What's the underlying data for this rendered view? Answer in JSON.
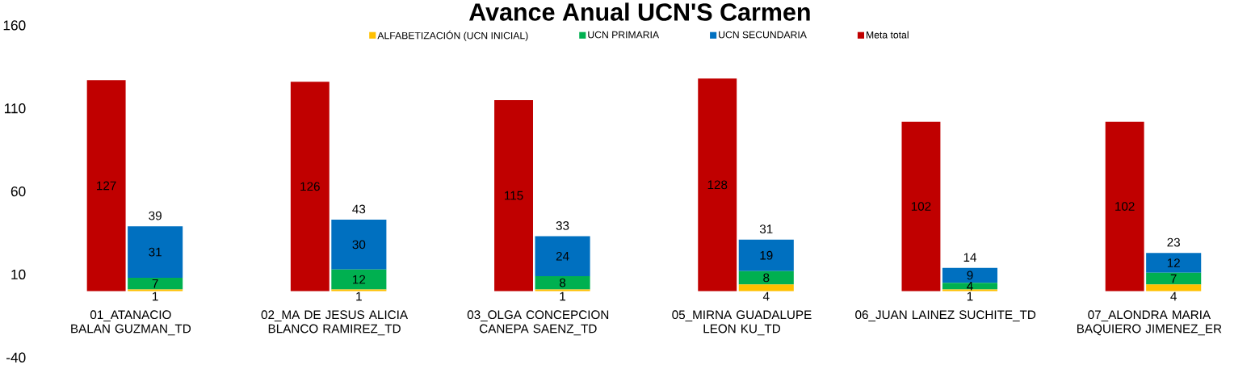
{
  "chart_data": {
    "type": "bar",
    "title": "Avance Anual UCN'S Carmen",
    "categories": [
      "01_ATANACIO BALAN GUZMAN_TD",
      "02_MA DE JESUS ALICIA BLANCO RAMIREZ_TD",
      "03_OLGA CONCEPCION CANEPA SAENZ_TD",
      "05_MIRNA GUADALUPE LEON KU_TD",
      "06_JUAN LAINEZ SUCHITE_TD",
      "07_ALONDRA MARIA BAQUIERO JIMENEZ_ER"
    ],
    "series": [
      {
        "name": "ALFABETIZACIÓN (UCN INICIAL)",
        "color": "#ffc000",
        "values": [
          1,
          1,
          1,
          4,
          1,
          4
        ]
      },
      {
        "name": "UCN PRIMARIA",
        "color": "#00b050",
        "values": [
          7,
          12,
          8,
          8,
          4,
          7
        ]
      },
      {
        "name": "UCN SECUNDARIA",
        "color": "#0070c0",
        "values": [
          31,
          30,
          24,
          19,
          9,
          12
        ]
      },
      {
        "name": "Meta total",
        "color": "#c00000",
        "values": [
          127,
          126,
          115,
          128,
          102,
          102
        ],
        "axis": "y2"
      }
    ],
    "stacked": true,
    "totals": [
      "39",
      "43",
      "33",
      "31",
      "14",
      "23"
    ],
    "data_labels": true,
    "legend": "top",
    "ylim": [
      -40,
      160
    ],
    "yticks": [
      -40,
      10,
      60,
      110,
      160
    ]
  }
}
